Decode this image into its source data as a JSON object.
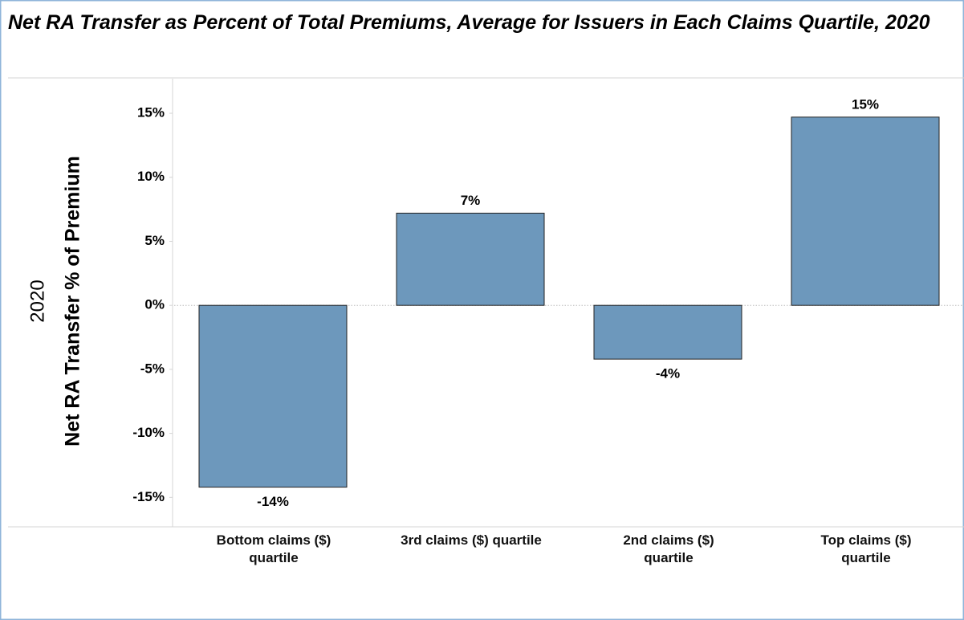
{
  "chart_data": {
    "type": "bar",
    "title": "Net RA Transfer as Percent of Total Premiums, Average for Issuers in Each Claims Quartile, 2020",
    "y_label_top": "2020",
    "y_label": "Net RA Transfer % of Premium",
    "categories": [
      "Bottom claims ($)\nquartile",
      "3rd claims ($) quartile",
      "2nd claims ($)\nquartile",
      "Top claims ($)\nquartile"
    ],
    "values": [
      -14.2,
      7.2,
      -4.2,
      14.7
    ],
    "value_labels": [
      "-14%",
      "7%",
      "-4%",
      "15%"
    ],
    "color": "#6d98bc",
    "ylim": [
      -17.3,
      17.7
    ],
    "yticks": [
      {
        "value": -15,
        "label": "-15%"
      },
      {
        "value": -10,
        "label": "-10%"
      },
      {
        "value": -5,
        "label": "-5%"
      },
      {
        "value": 0,
        "label": "0%"
      },
      {
        "value": 5,
        "label": "5%"
      },
      {
        "value": 10,
        "label": "10%"
      },
      {
        "value": 15,
        "label": "15%"
      }
    ],
    "zero_line": true
  }
}
